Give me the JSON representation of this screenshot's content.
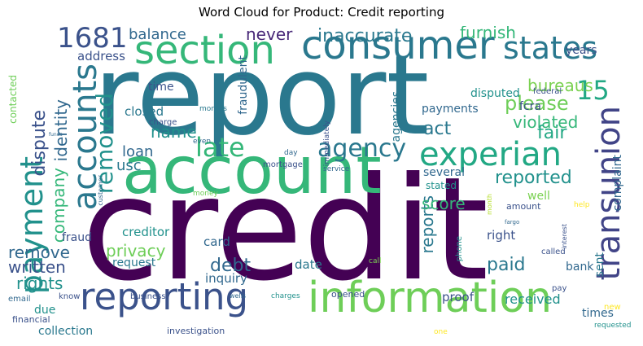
{
  "title": "Word Cloud for Product: Credit reporting",
  "words": [
    {
      "text": "report",
      "color": "#2a788e"
    },
    {
      "text": "credit",
      "color": "#440154"
    },
    {
      "text": "account",
      "color": "#35b779"
    },
    {
      "text": "information",
      "color": "#6ece58"
    },
    {
      "text": "reporting",
      "color": "#3b528b"
    },
    {
      "text": "consumer",
      "color": "#2a788e"
    },
    {
      "text": "section",
      "color": "#35b779"
    },
    {
      "text": "experian",
      "color": "#22a884"
    },
    {
      "text": "transunion",
      "color": "#414487"
    },
    {
      "text": "accounts",
      "color": "#2a788e"
    },
    {
      "text": "states",
      "color": "#2a788e"
    },
    {
      "text": "agency",
      "color": "#2a788e"
    },
    {
      "text": "payment",
      "color": "#21918c"
    },
    {
      "text": "removed",
      "color": "#21918c"
    },
    {
      "text": "1681",
      "color": "#3b528b"
    },
    {
      "text": "inaccurate",
      "color": "#2a788e"
    },
    {
      "text": "late",
      "color": "#35b779"
    },
    {
      "text": "15",
      "color": "#22a884"
    },
    {
      "text": "reported",
      "color": "#21918c"
    },
    {
      "text": "bureaus",
      "color": "#7ad151"
    },
    {
      "text": "please",
      "color": "#6ece58"
    },
    {
      "text": "violated",
      "color": "#35b779"
    },
    {
      "text": "reports",
      "color": "#2a788e"
    },
    {
      "text": "company",
      "color": "#35b779"
    },
    {
      "text": "identity",
      "color": "#31688e"
    },
    {
      "text": "dispute",
      "color": "#3b528b"
    },
    {
      "text": "act",
      "color": "#2a788e"
    },
    {
      "text": "fair",
      "color": "#22a884"
    },
    {
      "text": "name",
      "color": "#21918c"
    },
    {
      "text": "score",
      "color": "#35b779"
    },
    {
      "text": "privacy",
      "color": "#6ece58"
    },
    {
      "text": "remove",
      "color": "#31688e"
    },
    {
      "text": "rights",
      "color": "#21918c"
    },
    {
      "text": "written",
      "color": "#3b528b"
    },
    {
      "text": "debt",
      "color": "#31688e"
    },
    {
      "text": "paid",
      "color": "#2a788e"
    },
    {
      "text": "never",
      "color": "#482878"
    },
    {
      "text": "balance",
      "color": "#31688e"
    },
    {
      "text": "furnish",
      "color": "#35b779"
    },
    {
      "text": "loan",
      "color": "#31688e"
    },
    {
      "text": "usc",
      "color": "#2a788e"
    },
    {
      "text": "address",
      "color": "#3b528b"
    },
    {
      "text": "fraudulent",
      "color": "#31688e"
    },
    {
      "text": "agencies",
      "color": "#2a788e"
    },
    {
      "text": "time",
      "color": "#3b528b"
    },
    {
      "text": "closed",
      "color": "#2a788e"
    },
    {
      "text": "payments",
      "color": "#31688e"
    },
    {
      "text": "disputed",
      "color": "#21918c"
    },
    {
      "text": "fcra",
      "color": "#3b528b"
    },
    {
      "text": "years",
      "color": "#3b528b"
    },
    {
      "text": "sent",
      "color": "#2a788e"
    },
    {
      "text": "several",
      "color": "#31688e"
    },
    {
      "text": "stated",
      "color": "#21918c"
    },
    {
      "text": "complaint",
      "color": "#31688e"
    },
    {
      "text": "well",
      "color": "#7ad151"
    },
    {
      "text": "creditor",
      "color": "#21918c"
    },
    {
      "text": "fraud",
      "color": "#3b528b"
    },
    {
      "text": "card",
      "color": "#31688e"
    },
    {
      "text": "request",
      "color": "#2a788e"
    },
    {
      "text": "right",
      "color": "#3b528b"
    },
    {
      "text": "date",
      "color": "#2a788e"
    },
    {
      "text": "bank",
      "color": "#31688e"
    },
    {
      "text": "inquiry",
      "color": "#31688e"
    },
    {
      "text": "proof",
      "color": "#3b528b"
    },
    {
      "text": "received",
      "color": "#21918c"
    },
    {
      "text": "times",
      "color": "#31688e"
    },
    {
      "text": "due",
      "color": "#21918c"
    },
    {
      "text": "collection",
      "color": "#2a788e"
    },
    {
      "text": "contacted",
      "color": "#6ece58"
    },
    {
      "text": "mortgage",
      "color": "#3b528b"
    },
    {
      "text": "service",
      "color": "#31688e"
    },
    {
      "text": "customer",
      "color": "#31688e"
    },
    {
      "text": "money",
      "color": "#6ece58"
    },
    {
      "text": "charge",
      "color": "#3b528b"
    },
    {
      "text": "months",
      "color": "#2a788e"
    },
    {
      "text": "even",
      "color": "#31688e"
    },
    {
      "text": "day",
      "color": "#31688e"
    },
    {
      "text": "immediately",
      "color": "#3b528b"
    },
    {
      "text": "federal",
      "color": "#3b528b"
    },
    {
      "text": "amount",
      "color": "#3b528b"
    },
    {
      "text": "help",
      "color": "#fde725"
    },
    {
      "text": "month",
      "color": "#b5de2b"
    },
    {
      "text": "interest",
      "color": "#3b528b"
    },
    {
      "text": "called",
      "color": "#3b528b"
    },
    {
      "text": "phone",
      "color": "#21918c"
    },
    {
      "text": "call",
      "color": "#7ad151"
    },
    {
      "text": "pay",
      "color": "#3b528b"
    },
    {
      "text": "new",
      "color": "#fde725"
    },
    {
      "text": "requested",
      "color": "#21918c"
    },
    {
      "text": "one",
      "color": "#fde725"
    },
    {
      "text": "investigation",
      "color": "#3b528b"
    },
    {
      "text": "business",
      "color": "#3b528b"
    },
    {
      "text": "wells",
      "color": "#31688e"
    },
    {
      "text": "charges",
      "color": "#21918c"
    },
    {
      "text": "opened",
      "color": "#3b528b"
    },
    {
      "text": "financial",
      "color": "#3b528b"
    },
    {
      "text": "email",
      "color": "#31688e"
    },
    {
      "text": "know",
      "color": "#3b528b"
    },
    {
      "text": "funds",
      "color": "#31688e"
    },
    {
      "text": "fargo",
      "color": "#31688e"
    }
  ]
}
